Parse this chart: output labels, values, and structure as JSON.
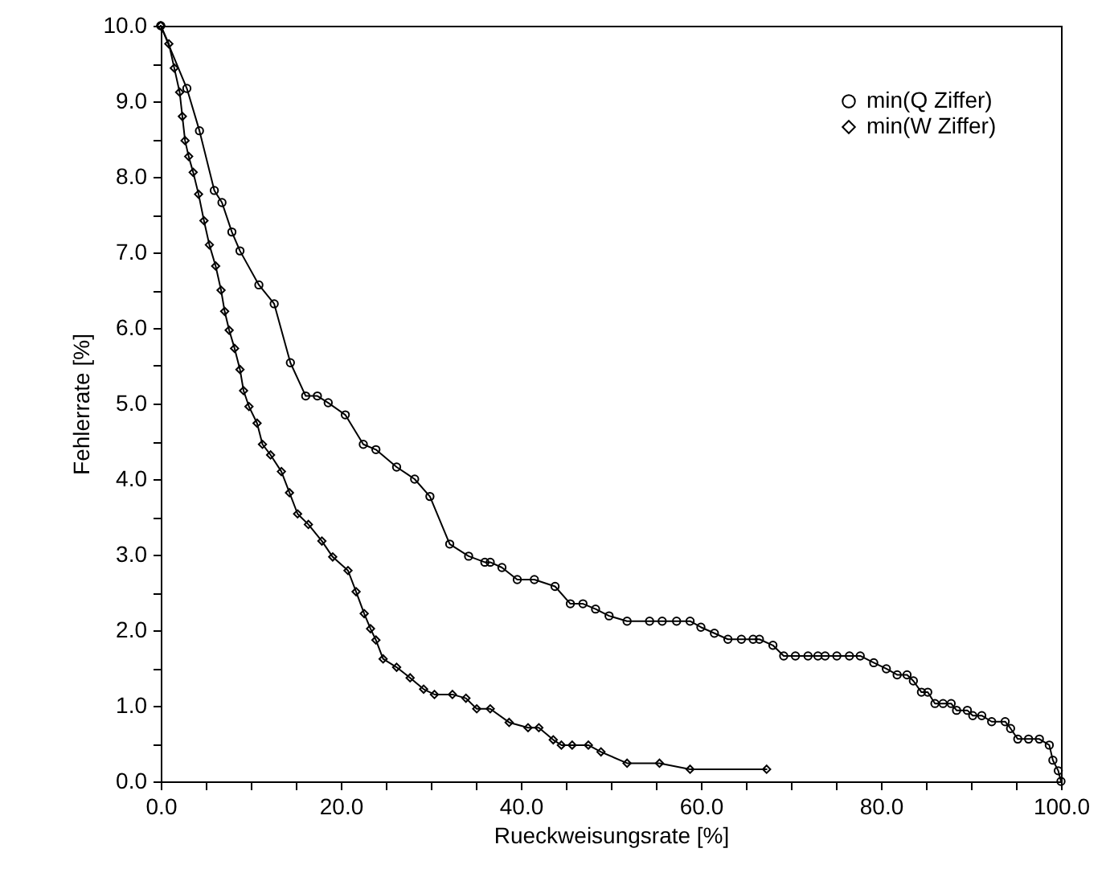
{
  "chart_data": {
    "type": "line",
    "xlabel": "Rueckweisungsrate [%]",
    "ylabel": "Fehlerrate [%]",
    "xlim": [
      0,
      100
    ],
    "ylim": [
      0,
      10
    ],
    "xticks": [
      {
        "value": 0,
        "label": "0.0"
      },
      {
        "value": 5,
        "label": null
      },
      {
        "value": 10,
        "label": null
      },
      {
        "value": 15,
        "label": null
      },
      {
        "value": 20,
        "label": "20.0"
      },
      {
        "value": 25,
        "label": null
      },
      {
        "value": 30,
        "label": null
      },
      {
        "value": 35,
        "label": null
      },
      {
        "value": 40,
        "label": "40.0"
      },
      {
        "value": 45,
        "label": null
      },
      {
        "value": 50,
        "label": null
      },
      {
        "value": 55,
        "label": null
      },
      {
        "value": 60,
        "label": "60.0"
      },
      {
        "value": 65,
        "label": null
      },
      {
        "value": 70,
        "label": null
      },
      {
        "value": 75,
        "label": null
      },
      {
        "value": 80,
        "label": "80.0"
      },
      {
        "value": 85,
        "label": null
      },
      {
        "value": 90,
        "label": null
      },
      {
        "value": 95,
        "label": null
      },
      {
        "value": 100,
        "label": "100.0"
      }
    ],
    "yticks": [
      {
        "value": 0,
        "label": "0.0"
      },
      {
        "value": 0.5,
        "label": null
      },
      {
        "value": 1,
        "label": "1.0"
      },
      {
        "value": 1.5,
        "label": null
      },
      {
        "value": 2,
        "label": "2.0"
      },
      {
        "value": 2.5,
        "label": null
      },
      {
        "value": 3,
        "label": "3.0"
      },
      {
        "value": 3.5,
        "label": null
      },
      {
        "value": 4,
        "label": "4.0"
      },
      {
        "value": 4.5,
        "label": null
      },
      {
        "value": 5,
        "label": "5.0"
      },
      {
        "value": 5.5,
        "label": null
      },
      {
        "value": 6,
        "label": "6.0"
      },
      {
        "value": 6.5,
        "label": null
      },
      {
        "value": 7,
        "label": "7.0"
      },
      {
        "value": 7.5,
        "label": null
      },
      {
        "value": 8,
        "label": "8.0"
      },
      {
        "value": 8.5,
        "label": null
      },
      {
        "value": 9,
        "label": "9.0"
      },
      {
        "value": 9.5,
        "label": null
      },
      {
        "value": 10,
        "label": "10.0"
      }
    ],
    "grid": false,
    "legend": "top right",
    "line_style": "solid",
    "series": [
      {
        "name": "min(Q Ziffer)",
        "color": "#000000",
        "marker": "circle",
        "x": [
          0,
          2.9,
          4.3,
          5.95,
          6.8,
          7.9,
          8.8,
          10.9,
          12.6,
          14.4,
          16.1,
          17.4,
          18.6,
          20.5,
          22.5,
          23.9,
          26.2,
          28.2,
          29.9,
          32.1,
          34.2,
          36.0,
          36.6,
          37.9,
          39.6,
          41.5,
          43.8,
          45.5,
          46.9,
          48.3,
          49.8,
          51.8,
          54.3,
          55.7,
          57.3,
          58.8,
          60.0,
          61.5,
          63.0,
          64.5,
          65.8,
          66.5,
          68.0,
          69.2,
          70.5,
          71.9,
          73.0,
          73.8,
          75.1,
          76.5,
          77.7,
          79.2,
          80.6,
          81.8,
          82.9,
          83.6,
          84.5,
          85.2,
          86.0,
          86.9,
          87.8,
          88.4,
          89.6,
          90.2,
          91.2,
          92.3,
          93.8,
          94.4,
          95.2,
          96.4,
          97.6,
          98.7,
          99.1,
          99.7,
          100
        ],
        "values": [
          10,
          9.17,
          8.61,
          7.82,
          7.66,
          7.27,
          7.02,
          6.57,
          6.32,
          5.54,
          5.1,
          5.1,
          5.01,
          4.85,
          4.46,
          4.39,
          4.16,
          4.0,
          3.77,
          3.14,
          2.98,
          2.9,
          2.9,
          2.83,
          2.67,
          2.67,
          2.58,
          2.35,
          2.35,
          2.28,
          2.19,
          2.12,
          2.12,
          2.12,
          2.12,
          2.12,
          2.04,
          1.96,
          1.88,
          1.88,
          1.88,
          1.88,
          1.8,
          1.66,
          1.66,
          1.66,
          1.66,
          1.66,
          1.66,
          1.66,
          1.66,
          1.57,
          1.49,
          1.41,
          1.41,
          1.33,
          1.18,
          1.18,
          1.03,
          1.03,
          1.03,
          0.94,
          0.94,
          0.87,
          0.87,
          0.79,
          0.79,
          0.7,
          0.56,
          0.56,
          0.56,
          0.48,
          0.28,
          0.14,
          0
        ]
      },
      {
        "name": "min(W Ziffer)",
        "color": "#000000",
        "marker": "diamond",
        "x": [
          0,
          0.9,
          1.5,
          2.1,
          2.4,
          2.7,
          3.1,
          3.6,
          4.2,
          4.8,
          5.4,
          6.1,
          6.7,
          7.1,
          7.6,
          8.2,
          8.8,
          9.2,
          9.8,
          10.7,
          11.3,
          12.2,
          13.4,
          14.3,
          15.2,
          16.4,
          17.9,
          19.1,
          20.8,
          21.7,
          22.6,
          23.3,
          23.9,
          24.7,
          26.2,
          27.7,
          29.2,
          30.4,
          32.4,
          33.9,
          35.1,
          36.6,
          38.7,
          40.8,
          42.0,
          43.6,
          44.5,
          45.7,
          47.5,
          48.9,
          51.8,
          55.4,
          58.8,
          67.3
        ],
        "values": [
          10,
          9.76,
          9.44,
          9.12,
          8.8,
          8.48,
          8.27,
          8.06,
          7.77,
          7.42,
          7.1,
          6.82,
          6.5,
          6.22,
          5.97,
          5.73,
          5.45,
          5.17,
          4.96,
          4.74,
          4.46,
          4.32,
          4.1,
          3.82,
          3.54,
          3.4,
          3.18,
          2.97,
          2.79,
          2.51,
          2.22,
          2.02,
          1.87,
          1.62,
          1.51,
          1.37,
          1.22,
          1.15,
          1.15,
          1.1,
          0.96,
          0.96,
          0.78,
          0.71,
          0.71,
          0.55,
          0.48,
          0.48,
          0.48,
          0.39,
          0.24,
          0.24,
          0.16,
          0.16
        ]
      }
    ]
  }
}
